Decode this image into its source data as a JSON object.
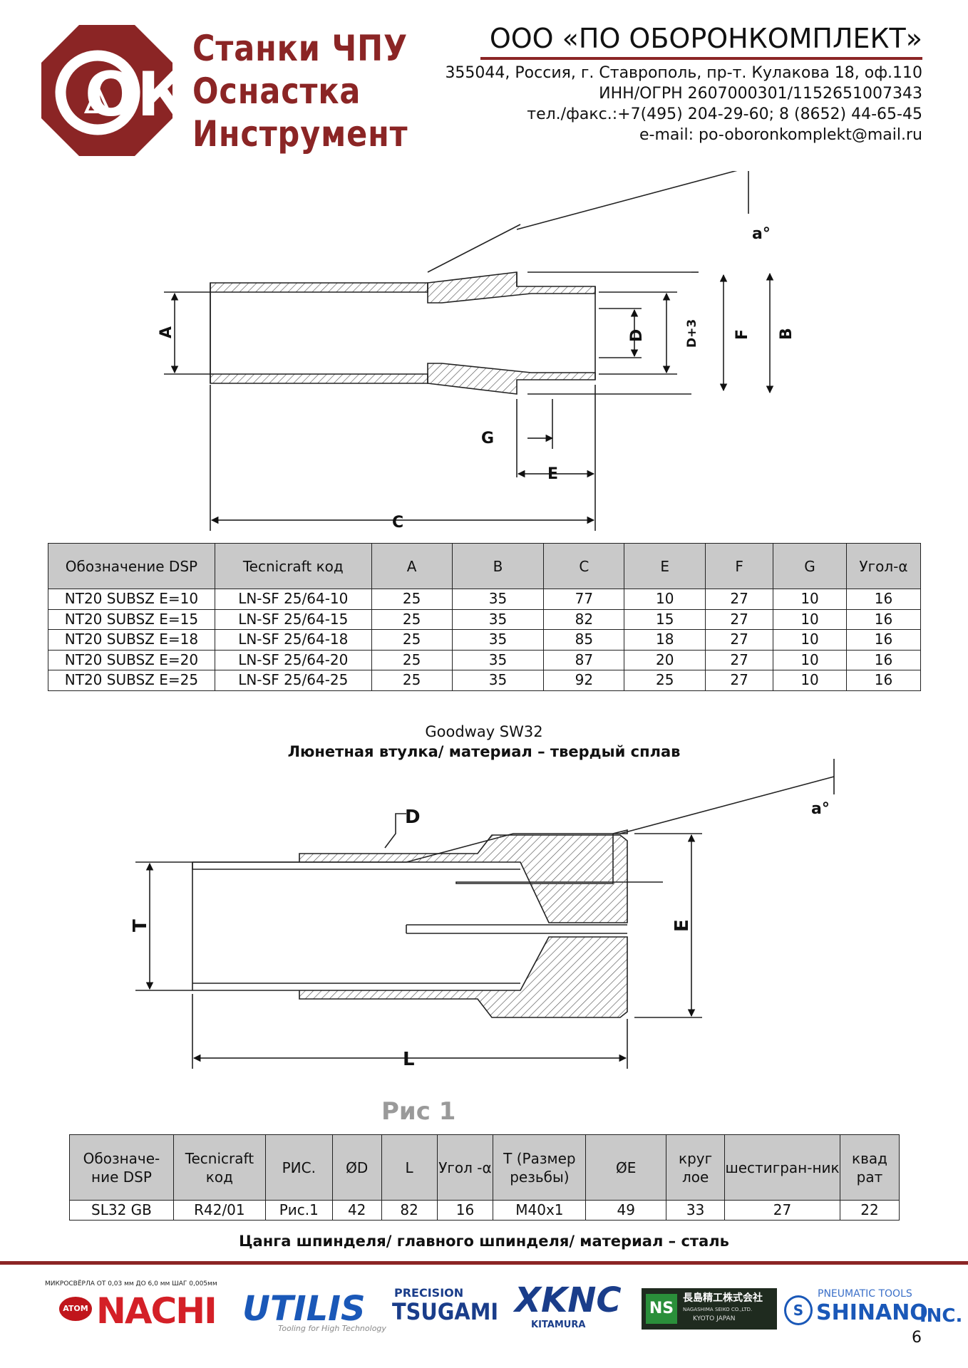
{
  "header": {
    "logo_text": "ОК",
    "tagline": [
      "Станки ЧПУ",
      "Оснастка",
      "Инструмент"
    ],
    "company_name": "ООО «ПО ОБОРОНКОМПЛЕКТ»",
    "address": "355044, Россия, г. Ставрополь, пр-т. Кулакова 18, оф.110",
    "inn": "ИНН/ОГРН 2607000301/1152651007343",
    "phone": "тел./факс.:+7(495) 204-29-60; 8 (8652) 44-65-45",
    "email": "e-mail: po-oboronkomplekt@mail.ru"
  },
  "drawing1": {
    "labels": {
      "a": "a°",
      "A": "A",
      "B": "B",
      "C": "C",
      "D": "D",
      "D3": "D+3",
      "E": "E",
      "F": "F",
      "G": "G"
    }
  },
  "table1": {
    "headers": [
      "Обозначение DSP",
      "Tecnicraft код",
      "A",
      "B",
      "C",
      "E",
      "F",
      "G",
      "Угол-α"
    ],
    "rows": [
      [
        "NT20 SUBSZ E=10",
        "LN-SF 25/64-10",
        "25",
        "35",
        "77",
        "10",
        "27",
        "10",
        "16"
      ],
      [
        "NT20 SUBSZ E=15",
        "LN-SF 25/64-15",
        "25",
        "35",
        "82",
        "15",
        "27",
        "10",
        "16"
      ],
      [
        "NT20 SUBSZ E=18",
        "LN-SF 25/64-18",
        "25",
        "35",
        "85",
        "18",
        "27",
        "10",
        "16"
      ],
      [
        "NT20 SUBSZ E=20",
        "LN-SF 25/64-20",
        "25",
        "35",
        "87",
        "20",
        "27",
        "10",
        "16"
      ],
      [
        "NT20 SUBSZ E=25",
        "LN-SF 25/64-25",
        "25",
        "35",
        "92",
        "25",
        "27",
        "10",
        "16"
      ]
    ]
  },
  "section2": {
    "title": "Goodway SW32",
    "subtitle": "Люнетная втулка/ материал – твердый сплав"
  },
  "drawing2": {
    "labels": {
      "D": "D",
      "a": "a°",
      "T": "T",
      "E": "E",
      "L": "L"
    },
    "fig_label": "Рис 1"
  },
  "table2": {
    "headers": [
      "Обозначе-ние DSP",
      "Tecnicraft код",
      "РИС.",
      "ØD",
      "L",
      "Угол -α",
      "Т (Размер резьбы)",
      "ØE",
      "круг лое",
      "шестигран-ник",
      "квад рат"
    ],
    "rows": [
      [
        "SL32 GB",
        "R42/01",
        "Рис.1",
        "42",
        "82",
        "16",
        "M40x1",
        "49",
        "33",
        "27",
        "22"
      ]
    ]
  },
  "caption3": "Цанга шпинделя/ главного шпинделя/ материал – сталь",
  "footer": {
    "brands": {
      "nachi_small": "МИКРОСВЁРЛА ОТ 0,03 мм ДО 6,0 мм ШАГ 0,005мм",
      "atom": "ATOM",
      "nachi": "NACHI",
      "utilis": "UTILIS",
      "utilis_sub": "Tooling for High Technology",
      "tsugami_top": "PRECISION",
      "tsugami": "TSUGAMI",
      "xknc": "XKNC",
      "kitamura": "KITAMURA",
      "ns": "NS",
      "nagashima": "長島精工株式会社",
      "nagashima_sub": "NAGASHIMA SEIKO CO.,LTD.",
      "kyoto": "KYOTO JAPAN",
      "shinano_top": "PNEUMATIC TOOLS",
      "shinano": "SHINANO",
      "inc": "INC."
    },
    "page_number": "6"
  },
  "colors": {
    "brand": "#8b2525",
    "header_bg": "#c9c9c9"
  }
}
